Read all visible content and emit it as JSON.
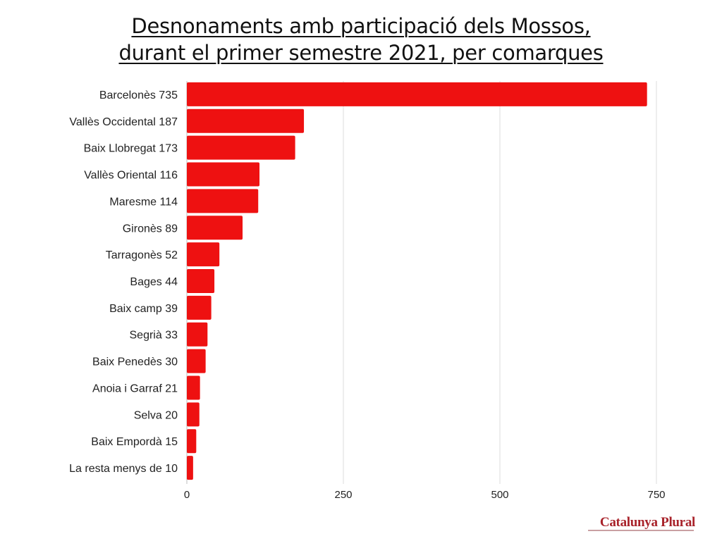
{
  "chart_data": {
    "type": "bar",
    "orientation": "horizontal",
    "title_lines": [
      "Desnonaments amb participació dels Mossos,",
      "durant el primer semestre 2021, per comarques"
    ],
    "categories": [
      "Barcelonès 735",
      "Vallès Occidental 187",
      "Baix Llobregat 173",
      "Vallès Oriental 116",
      "Maresme 114",
      "Gironès 89",
      "Tarragonès 52",
      "Bages 44",
      "Baix camp 39",
      "Segrià 33",
      "Baix Penedès 30",
      "Anoia i Garraf 21",
      "Selva 20",
      "Baix Empordà 15",
      "La resta menys de 10"
    ],
    "values": [
      735,
      187,
      173,
      116,
      114,
      89,
      52,
      44,
      39,
      33,
      30,
      21,
      20,
      15,
      10
    ],
    "xlabel": "",
    "ylabel": "",
    "xlim": [
      0,
      750
    ],
    "xticks": [
      0,
      250,
      500,
      750
    ],
    "grid": "vertical",
    "bar_color": "#ee1111"
  },
  "logo": {
    "text": "Catalunya Plural"
  }
}
